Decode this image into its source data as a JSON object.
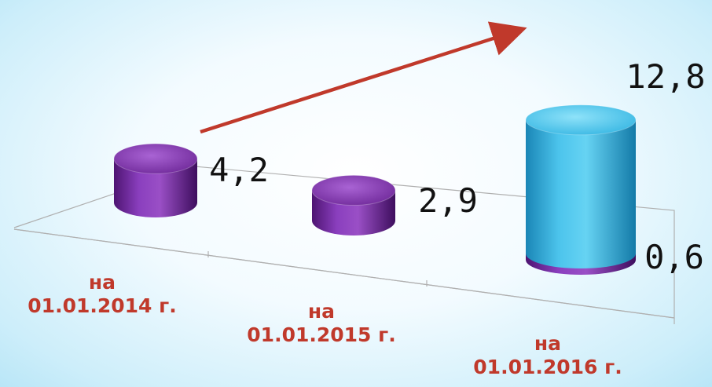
{
  "chart_data": {
    "type": "bar",
    "title": "",
    "categories": [
      [
        "на",
        "01.01.2014 г."
      ],
      [
        "на",
        "01.01.2015 г."
      ],
      [
        "на",
        "01.01.2016 г."
      ]
    ],
    "series": [
      {
        "values": [
          4.2,
          2.9,
          0.6
        ],
        "color": "#7a2fa8"
      },
      {
        "values": [
          0,
          0,
          12.8
        ],
        "color": "#2fb2e0"
      }
    ],
    "value_labels": [
      "4,2",
      "2,9",
      "12,8",
      "0,6"
    ],
    "stacked": true,
    "trend_arrow": {
      "from": 0,
      "to": 2,
      "color": "#c0392b"
    },
    "colors": {
      "label": "#c0392b",
      "purple_light": "#9a4fc6",
      "purple_dark": "#4e1472",
      "blue_light": "#66d3f3",
      "blue_dark": "#1a86b6"
    }
  }
}
